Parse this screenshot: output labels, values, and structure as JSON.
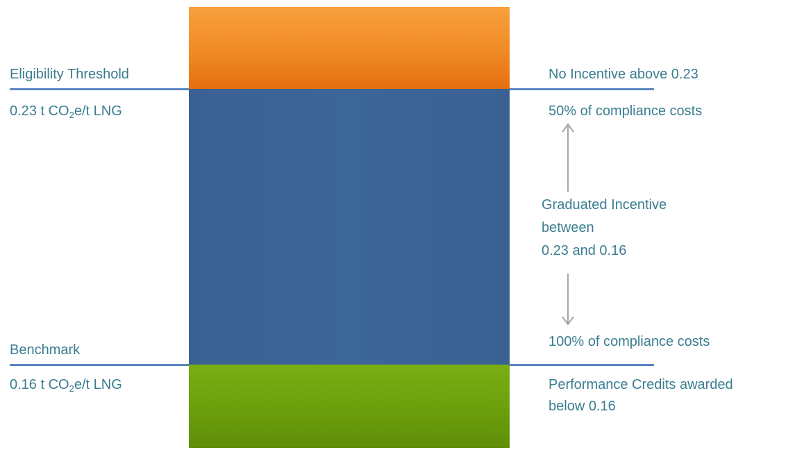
{
  "bands": [
    {
      "name": "above-threshold",
      "color": "#f08a24"
    },
    {
      "name": "graduated-incentive-zone",
      "color": "#3d6699"
    },
    {
      "name": "below-benchmark",
      "color": "#6ea00d"
    }
  ],
  "left_labels": {
    "threshold_title": "Eligibility Threshold",
    "threshold_value_prefix": "0.23 t CO",
    "threshold_value_sub": "2",
    "threshold_value_suffix": "e/t LNG",
    "benchmark_title": "Benchmark",
    "benchmark_value_prefix": "0.16 t CO",
    "benchmark_value_sub": "2",
    "benchmark_value_suffix": "e/t LNG"
  },
  "right_labels": {
    "no_incentive": "No Incentive above 0.23",
    "fifty_percent": "50% of compliance costs",
    "graduated_line1": "Graduated Incentive",
    "graduated_line2": "between",
    "graduated_line3": "0.23 and 0.16",
    "hundred_percent": "100% of compliance costs",
    "credits_line1": "Performance Credits awarded",
    "credits_line2": "below 0.16"
  },
  "colors": {
    "line": "#5b86c0",
    "text": "#3a7d90",
    "arrow": "#a6a6a6"
  }
}
